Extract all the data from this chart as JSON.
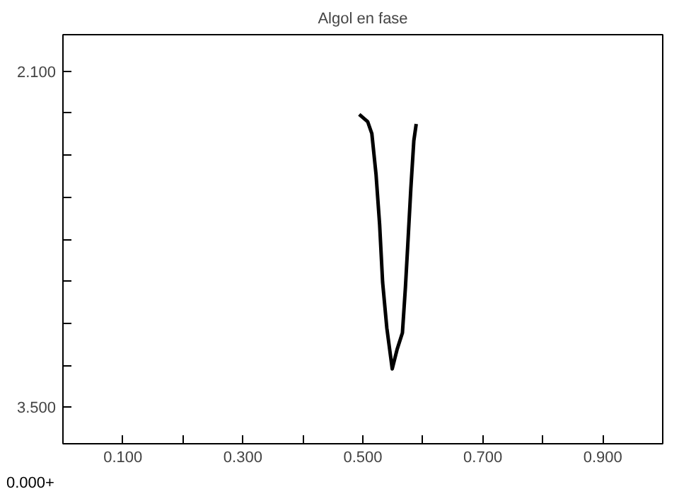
{
  "chart_data": {
    "type": "line",
    "title": "Algol en fase",
    "x": [
      0.494,
      0.508,
      0.515,
      0.522,
      0.528,
      0.533,
      0.54,
      0.549,
      0.557,
      0.566,
      0.571,
      0.575,
      0.58,
      0.585,
      0.589
    ],
    "series": [
      {
        "color": "#000000",
        "values": [
          2.28,
          2.31,
          2.36,
          2.53,
          2.74,
          2.98,
          3.17,
          3.34,
          3.26,
          3.19,
          3.0,
          2.82,
          2.59,
          2.39,
          2.32
        ]
      }
    ],
    "xlim": [
      0.0,
      1.0
    ],
    "ylim": [
      3.652,
      1.948
    ],
    "xticks": [
      {
        "value": 0.1,
        "label": "0.100"
      },
      {
        "value": 0.2,
        "label": null
      },
      {
        "value": 0.3,
        "label": "0.300"
      },
      {
        "value": 0.4,
        "label": null
      },
      {
        "value": 0.5,
        "label": "0.500"
      },
      {
        "value": 0.6,
        "label": null
      },
      {
        "value": 0.7,
        "label": "0.700"
      },
      {
        "value": 0.8,
        "label": null
      },
      {
        "value": 0.9,
        "label": "0.900"
      }
    ],
    "yticks": [
      {
        "value": 2.1,
        "label": "2.100"
      },
      {
        "value": 2.275,
        "label": null
      },
      {
        "value": 2.45,
        "label": null
      },
      {
        "value": 2.625,
        "label": null
      },
      {
        "value": 2.8,
        "label": null
      },
      {
        "value": 2.975,
        "label": null
      },
      {
        "value": 3.15,
        "label": null
      },
      {
        "value": 3.325,
        "label": null
      },
      {
        "value": 3.5,
        "label": "3.500"
      }
    ],
    "annotations": [
      "0.000+"
    ],
    "grid": false,
    "marker": "none",
    "line_style": "solid"
  }
}
